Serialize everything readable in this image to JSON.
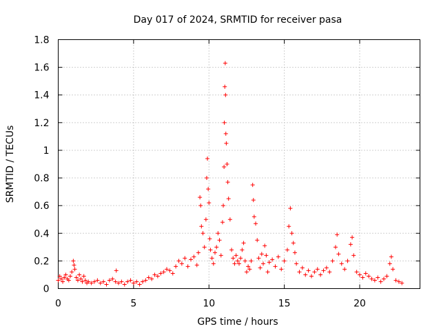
{
  "chart_data": {
    "type": "scatter",
    "title": "Day 017 of 2024, SRMTID for receiver pasa",
    "xlabel": "GPS time / hours",
    "ylabel": "SRMTID / TECUs",
    "xlim": [
      0,
      24
    ],
    "ylim": [
      0,
      1.8
    ],
    "x_ticks": [
      0,
      5,
      10,
      15,
      20
    ],
    "x_tick_labels": [
      "0",
      "5",
      "10",
      "15",
      "20"
    ],
    "y_ticks": [
      0,
      0.2,
      0.4,
      0.6,
      0.8,
      1,
      1.2,
      1.4,
      1.6,
      1.8
    ],
    "y_tick_labels": [
      "0",
      "0.2",
      "0.4",
      "0.6",
      "0.8",
      "1",
      "1.2",
      "1.4",
      "1.6",
      "1.8"
    ],
    "grid": true,
    "marker": "plus",
    "color": "#ff0000",
    "series": [
      {
        "name": "SRMTID",
        "points": [
          [
            0.0,
            0.06
          ],
          [
            0.1,
            0.09
          ],
          [
            0.2,
            0.07
          ],
          [
            0.3,
            0.05
          ],
          [
            0.4,
            0.08
          ],
          [
            0.5,
            0.1
          ],
          [
            0.6,
            0.07
          ],
          [
            0.7,
            0.06
          ],
          [
            0.8,
            0.09
          ],
          [
            0.9,
            0.12
          ],
          [
            1.0,
            0.2
          ],
          [
            1.05,
            0.17
          ],
          [
            1.1,
            0.14
          ],
          [
            1.2,
            0.08
          ],
          [
            1.3,
            0.06
          ],
          [
            1.4,
            0.1
          ],
          [
            1.5,
            0.07
          ],
          [
            1.6,
            0.05
          ],
          [
            1.7,
            0.09
          ],
          [
            1.8,
            0.06
          ],
          [
            1.9,
            0.04
          ],
          [
            2.0,
            0.05
          ],
          [
            2.2,
            0.04
          ],
          [
            2.4,
            0.05
          ],
          [
            2.6,
            0.06
          ],
          [
            2.8,
            0.04
          ],
          [
            3.0,
            0.05
          ],
          [
            3.2,
            0.03
          ],
          [
            3.4,
            0.06
          ],
          [
            3.6,
            0.07
          ],
          [
            3.8,
            0.05
          ],
          [
            3.85,
            0.13
          ],
          [
            4.0,
            0.04
          ],
          [
            4.2,
            0.05
          ],
          [
            4.4,
            0.03
          ],
          [
            4.6,
            0.05
          ],
          [
            4.8,
            0.06
          ],
          [
            5.0,
            0.04
          ],
          [
            5.2,
            0.05
          ],
          [
            5.4,
            0.03
          ],
          [
            5.6,
            0.05
          ],
          [
            5.8,
            0.06
          ],
          [
            6.0,
            0.08
          ],
          [
            6.2,
            0.07
          ],
          [
            6.4,
            0.1
          ],
          [
            6.6,
            0.09
          ],
          [
            6.8,
            0.11
          ],
          [
            7.0,
            0.12
          ],
          [
            7.2,
            0.14
          ],
          [
            7.4,
            0.13
          ],
          [
            7.6,
            0.11
          ],
          [
            7.8,
            0.16
          ],
          [
            8.0,
            0.2
          ],
          [
            8.2,
            0.18
          ],
          [
            8.4,
            0.22
          ],
          [
            8.6,
            0.16
          ],
          [
            8.8,
            0.21
          ],
          [
            9.0,
            0.23
          ],
          [
            9.2,
            0.17
          ],
          [
            9.3,
            0.26
          ],
          [
            9.4,
            0.66
          ],
          [
            9.45,
            0.6
          ],
          [
            9.5,
            0.45
          ],
          [
            9.6,
            0.4
          ],
          [
            9.7,
            0.3
          ],
          [
            9.8,
            0.5
          ],
          [
            9.85,
            0.8
          ],
          [
            9.9,
            0.94
          ],
          [
            9.95,
            0.72
          ],
          [
            10.0,
            0.62
          ],
          [
            10.05,
            0.36
          ],
          [
            10.1,
            0.28
          ],
          [
            10.2,
            0.22
          ],
          [
            10.3,
            0.18
          ],
          [
            10.4,
            0.26
          ],
          [
            10.5,
            0.3
          ],
          [
            10.6,
            0.4
          ],
          [
            10.7,
            0.35
          ],
          [
            10.8,
            0.24
          ],
          [
            10.9,
            0.48
          ],
          [
            10.95,
            0.6
          ],
          [
            11.0,
            0.88
          ],
          [
            11.02,
            1.2
          ],
          [
            11.05,
            1.46
          ],
          [
            11.08,
            1.63
          ],
          [
            11.1,
            1.4
          ],
          [
            11.12,
            1.12
          ],
          [
            11.15,
            1.05
          ],
          [
            11.2,
            0.9
          ],
          [
            11.25,
            0.77
          ],
          [
            11.3,
            0.65
          ],
          [
            11.4,
            0.5
          ],
          [
            11.5,
            0.28
          ],
          [
            11.6,
            0.22
          ],
          [
            11.7,
            0.18
          ],
          [
            11.8,
            0.24
          ],
          [
            11.9,
            0.2
          ],
          [
            12.0,
            0.18
          ],
          [
            12.1,
            0.22
          ],
          [
            12.2,
            0.28
          ],
          [
            12.3,
            0.33
          ],
          [
            12.4,
            0.2
          ],
          [
            12.5,
            0.12
          ],
          [
            12.6,
            0.16
          ],
          [
            12.7,
            0.14
          ],
          [
            12.8,
            0.2
          ],
          [
            12.9,
            0.75
          ],
          [
            12.95,
            0.64
          ],
          [
            13.0,
            0.52
          ],
          [
            13.1,
            0.47
          ],
          [
            13.2,
            0.35
          ],
          [
            13.3,
            0.22
          ],
          [
            13.4,
            0.15
          ],
          [
            13.5,
            0.25
          ],
          [
            13.6,
            0.18
          ],
          [
            13.7,
            0.31
          ],
          [
            13.8,
            0.24
          ],
          [
            13.9,
            0.12
          ],
          [
            14.0,
            0.19
          ],
          [
            14.2,
            0.21
          ],
          [
            14.4,
            0.16
          ],
          [
            14.6,
            0.23
          ],
          [
            14.8,
            0.14
          ],
          [
            15.0,
            0.2
          ],
          [
            15.2,
            0.28
          ],
          [
            15.3,
            0.45
          ],
          [
            15.4,
            0.58
          ],
          [
            15.5,
            0.4
          ],
          [
            15.6,
            0.33
          ],
          [
            15.7,
            0.26
          ],
          [
            15.8,
            0.18
          ],
          [
            16.0,
            0.12
          ],
          [
            16.2,
            0.15
          ],
          [
            16.4,
            0.1
          ],
          [
            16.6,
            0.13
          ],
          [
            16.8,
            0.09
          ],
          [
            17.0,
            0.12
          ],
          [
            17.2,
            0.14
          ],
          [
            17.4,
            0.1
          ],
          [
            17.6,
            0.13
          ],
          [
            17.8,
            0.15
          ],
          [
            18.0,
            0.12
          ],
          [
            18.2,
            0.2
          ],
          [
            18.4,
            0.3
          ],
          [
            18.5,
            0.39
          ],
          [
            18.6,
            0.25
          ],
          [
            18.8,
            0.18
          ],
          [
            19.0,
            0.14
          ],
          [
            19.2,
            0.2
          ],
          [
            19.4,
            0.32
          ],
          [
            19.5,
            0.37
          ],
          [
            19.6,
            0.24
          ],
          [
            19.8,
            0.12
          ],
          [
            20.0,
            0.1
          ],
          [
            20.2,
            0.08
          ],
          [
            20.4,
            0.11
          ],
          [
            20.6,
            0.09
          ],
          [
            20.8,
            0.07
          ],
          [
            21.0,
            0.06
          ],
          [
            21.2,
            0.08
          ],
          [
            21.4,
            0.05
          ],
          [
            21.6,
            0.07
          ],
          [
            21.8,
            0.09
          ],
          [
            22.0,
            0.18
          ],
          [
            22.1,
            0.23
          ],
          [
            22.2,
            0.14
          ],
          [
            22.4,
            0.06
          ],
          [
            22.6,
            0.05
          ],
          [
            22.8,
            0.04
          ]
        ]
      }
    ]
  }
}
